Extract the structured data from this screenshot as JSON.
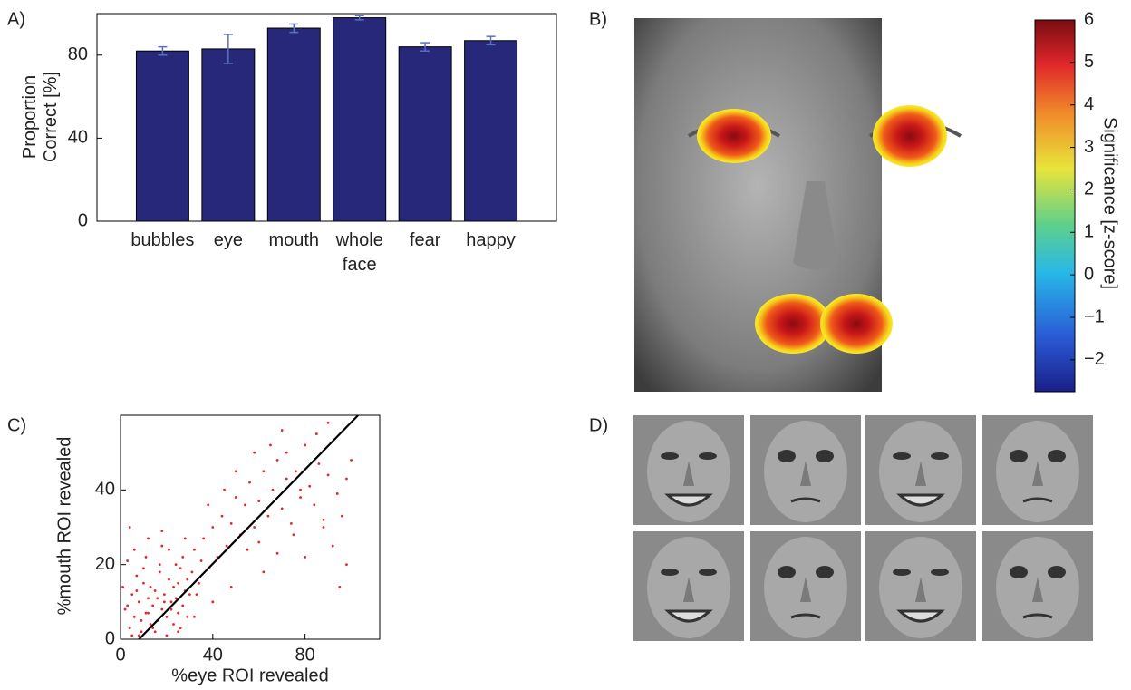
{
  "panels": [
    "A)",
    "B)",
    "C)",
    "D)"
  ],
  "chart_data": [
    {
      "type": "bar",
      "y_label": "Proportion Correct [%]",
      "categories": [
        "bubbles",
        "eye",
        "mouth",
        "whole face",
        "fear",
        "happy"
      ],
      "values": [
        82,
        83,
        93,
        98,
        84,
        87
      ],
      "errors": [
        2,
        7,
        2,
        1,
        2,
        2
      ],
      "color": "#27287a",
      "error_color": "#5a6fc0",
      "ylim": [
        0,
        100
      ],
      "yticks": [
        0,
        40,
        80
      ],
      "grid": false
    },
    {
      "type": "colorbar",
      "label": "Significance [z-score]",
      "clim": [
        -2.75,
        6
      ],
      "ticks": [
        {
          "value": -2,
          "label": "−2"
        },
        {
          "value": -1,
          "label": "−1"
        },
        0,
        1,
        2,
        3,
        4,
        5,
        6
      ]
    },
    {
      "type": "scatter",
      "x_label": "%eye ROI revealed",
      "y_label": "%mouth ROI revealed",
      "color": "#e8242a",
      "line_color": "#000000",
      "xlim": [
        0,
        110
      ],
      "ylim": [
        0,
        60
      ],
      "xticks": [
        0,
        40,
        80
      ],
      "yticks": [
        0,
        20,
        40
      ],
      "x": [
        2,
        4,
        5,
        6,
        8,
        9,
        10,
        11,
        12,
        13,
        14,
        15,
        16,
        17,
        18,
        19,
        20,
        21,
        22,
        23,
        24,
        25,
        26,
        27,
        28,
        29,
        30,
        3,
        5,
        7,
        9,
        11,
        13,
        15,
        17,
        19,
        21,
        23,
        25,
        27,
        29,
        31,
        33,
        35,
        1,
        3,
        6,
        8,
        10,
        12,
        14,
        16,
        18,
        20,
        22,
        24,
        26,
        28,
        32,
        34,
        36,
        38,
        40,
        42,
        44,
        46,
        48,
        50,
        52,
        54,
        56,
        58,
        60,
        62,
        64,
        66,
        68,
        70,
        72,
        74,
        76,
        78,
        80,
        82,
        84,
        86,
        88,
        90,
        92,
        94,
        96,
        98,
        45,
        55,
        65,
        75,
        85,
        95,
        50,
        60,
        70,
        80,
        90,
        100,
        38,
        48,
        58,
        68,
        78,
        88,
        98,
        4,
        7,
        12,
        18,
        25,
        32,
        40,
        62,
        72
      ],
      "y": [
        8,
        3,
        12,
        6,
        10,
        2,
        15,
        7,
        11,
        4,
        9,
        13,
        5,
        18,
        8,
        12,
        6,
        16,
        10,
        14,
        11,
        7,
        19,
        9,
        13,
        16,
        12,
        21,
        1,
        17,
        5,
        22,
        14,
        2,
        20,
        10,
        24,
        4,
        15,
        22,
        6,
        18,
        12,
        21,
        14,
        9,
        24,
        1,
        19,
        27,
        3,
        11,
        25,
        1,
        8,
        20,
        3,
        27,
        24,
        15,
        27,
        19,
        30,
        22,
        33,
        25,
        31,
        38,
        28,
        36,
        42,
        30,
        37,
        45,
        33,
        40,
        48,
        35,
        43,
        31,
        45,
        38,
        52,
        41,
        36,
        47,
        30,
        44,
        25,
        39,
        33,
        20,
        40,
        24,
        52,
        28,
        55,
        14,
        45,
        26,
        56,
        22,
        58,
        48,
        36,
        14,
        50,
        23,
        40,
        32,
        43,
        30,
        13,
        7,
        29,
        2,
        6,
        10,
        18,
        50
      ],
      "fit_line": {
        "x": [
          8,
          103
        ],
        "y": [
          0,
          60
        ]
      }
    }
  ]
}
